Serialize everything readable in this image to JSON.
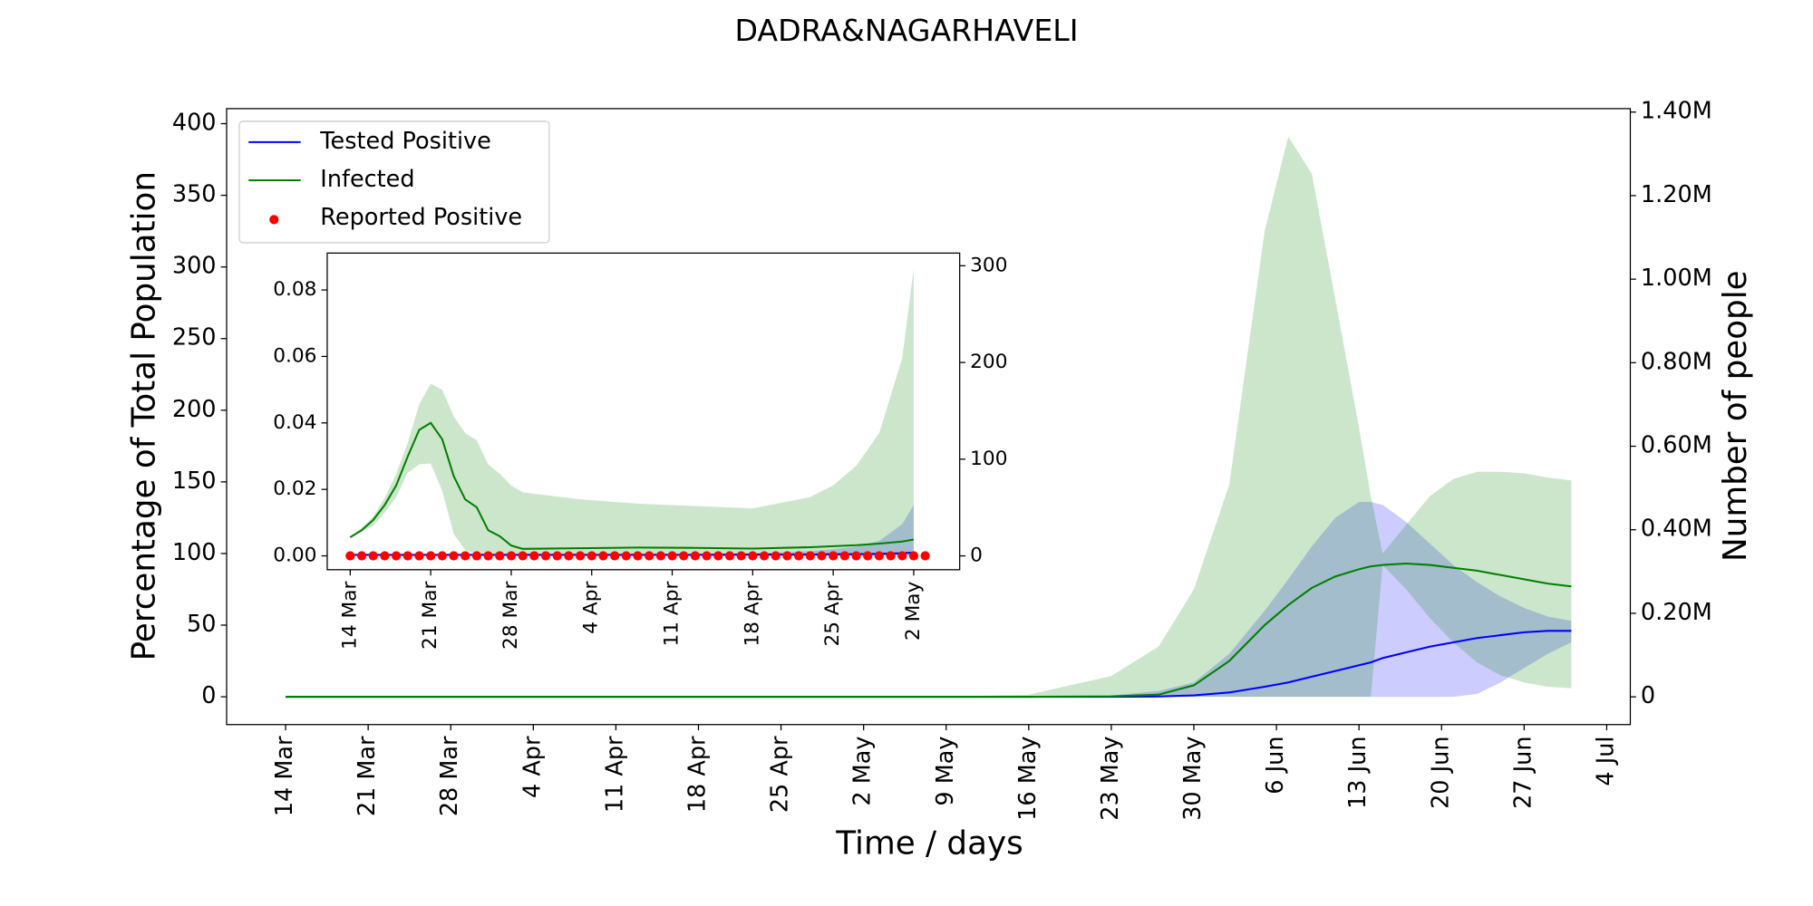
{
  "chart_data": [
    {
      "type": "line",
      "title": "DADRA&NAGARHAVELI",
      "xlabel": "Time / days",
      "ylabel": "Percentage of Total Population",
      "y2label": "Number of people",
      "legend_loc": "upper left",
      "band_alpha": 0.2,
      "x": [
        "14 Mar",
        "21 Mar",
        "28 Mar",
        "4 Apr",
        "11 Apr",
        "18 Apr",
        "25 Apr",
        "2 May",
        "9 May",
        "16 May",
        "23 May",
        "27 May",
        "30 May",
        "2 Jun",
        "5 Jun",
        "7 Jun",
        "9 Jun",
        "11 Jun",
        "13 Jun",
        "14 Jun",
        "15 Jun",
        "17 Jun",
        "19 Jun",
        "21 Jun",
        "23 Jun",
        "25 Jun",
        "27 Jun",
        "29 Jun",
        "1 Jul"
      ],
      "xlim": [
        "9 Mar",
        "6 Jul"
      ],
      "xticks": [
        "14 Mar",
        "21 Mar",
        "28 Mar",
        "4 Apr",
        "11 Apr",
        "18 Apr",
        "25 Apr",
        "2 May",
        "9 May",
        "16 May",
        "23 May",
        "30 May",
        "6 Jun",
        "13 Jun",
        "20 Jun",
        "27 Jun",
        "4 Jul"
      ],
      "ylim": [
        -19.4,
        410.5
      ],
      "yticks": [
        0,
        50,
        100,
        150,
        200,
        250,
        300,
        350,
        400
      ],
      "y2lim": [
        -66400,
        1408300
      ],
      "y2ticks": [
        {
          "value": 0,
          "label": "0"
        },
        {
          "value": 200000,
          "label": "0.20M"
        },
        {
          "value": 400000,
          "label": "0.40M"
        },
        {
          "value": 600000,
          "label": "0.60M"
        },
        {
          "value": 800000,
          "label": "0.80M"
        },
        {
          "value": 1000000,
          "label": "1.00M"
        },
        {
          "value": 1200000,
          "label": "1.20M"
        },
        {
          "value": 1400000,
          "label": "1.40M"
        }
      ],
      "series": [
        {
          "name": "Tested Positive",
          "color": "blue",
          "values": [
            0,
            0,
            0,
            0,
            0,
            0,
            0,
            0,
            0,
            0,
            0,
            0.2,
            1,
            3,
            7,
            10,
            14,
            18,
            22,
            24,
            27,
            31,
            35,
            38,
            41,
            43,
            45,
            46,
            46
          ],
          "upper": [
            0,
            0,
            0,
            0,
            0,
            0,
            0,
            0,
            0,
            0,
            1,
            4,
            10,
            30,
            60,
            82,
            105,
            125,
            136,
            136,
            134,
            122,
            107,
            92,
            80,
            70,
            62,
            56,
            53
          ],
          "lower": [
            0,
            0,
            0,
            0,
            0,
            0,
            0,
            0,
            0,
            0,
            0,
            0,
            0,
            0,
            0,
            0,
            0,
            0,
            0,
            0,
            0,
            0,
            0,
            0,
            2,
            10,
            20,
            30,
            38
          ]
        },
        {
          "name": "Infected",
          "color": "green",
          "values": [
            0,
            0,
            0,
            0,
            0,
            0,
            0,
            0,
            0,
            0,
            0.3,
            1.5,
            8,
            25,
            50,
            64,
            76,
            84,
            89,
            91,
            92,
            93,
            92,
            90,
            88,
            85,
            82,
            79,
            77
          ],
          "upper": [
            0,
            0,
            0,
            0,
            0,
            0,
            0,
            0,
            0.2,
            1.5,
            14.5,
            35,
            75,
            148,
            325,
            391,
            365,
            277,
            188,
            140,
            100,
            120,
            140,
            152,
            157,
            157,
            156,
            153,
            151
          ],
          "lower": [
            0,
            0,
            0,
            0,
            0,
            0,
            0,
            0,
            0,
            0,
            0,
            0,
            0,
            0,
            0,
            0,
            0,
            0,
            0,
            0,
            92,
            75,
            55,
            38,
            24,
            15,
            10,
            7,
            6
          ]
        },
        {
          "name": "Reported Positive",
          "color": "red",
          "marker": "dot"
        }
      ]
    },
    {
      "type": "line",
      "x": [
        "14 Mar",
        "15 Mar",
        "16 Mar",
        "17 Mar",
        "18 Mar",
        "19 Mar",
        "20 Mar",
        "21 Mar",
        "22 Mar",
        "23 Mar",
        "24 Mar",
        "25 Mar",
        "26 Mar",
        "27 Mar",
        "28 Mar",
        "29 Mar",
        "3 Apr",
        "8 Apr",
        "13 Apr",
        "18 Apr",
        "23 Apr",
        "25 Apr",
        "27 Apr",
        "29 Apr",
        "1 May",
        "2 May"
      ],
      "xlim": [
        "12 Mar",
        "6 May"
      ],
      "xticks": [
        "14 Mar",
        "21 Mar",
        "28 Mar",
        "4 Apr",
        "11 Apr",
        "18 Apr",
        "25 Apr",
        "2 May"
      ],
      "ylim": [
        -0.00417,
        0.0911
      ],
      "yticks": [
        {
          "value": 0,
          "label": "0.00"
        },
        {
          "value": 0.02,
          "label": "0.02"
        },
        {
          "value": 0.04,
          "label": "0.04"
        },
        {
          "value": 0.06,
          "label": "0.06"
        },
        {
          "value": 0.08,
          "label": "0.08"
        }
      ],
      "y2lim": [
        -14.3,
        313.1
      ],
      "y2ticks": [
        0,
        100,
        200,
        300
      ],
      "band_alpha": 0.2,
      "series": [
        {
          "color": "blue",
          "values": [
            0.0003,
            0.0003,
            0.0003,
            0.0003,
            0.0003,
            0.0003,
            0.0003,
            0.0003,
            0.0003,
            0.0003,
            0.0003,
            0.0003,
            0.0003,
            0.0003,
            0.0003,
            0.0003,
            0.0003,
            0.0003,
            0.0003,
            0.0004,
            0.0004,
            0.0005,
            0.0005,
            0.0006,
            0.0008,
            0.001
          ],
          "upper": [
            0.0004,
            0.0004,
            0.0004,
            0.0004,
            0.0004,
            0.0004,
            0.0004,
            0.0004,
            0.0004,
            0.0004,
            0.0004,
            0.0004,
            0.0004,
            0.0004,
            0.0004,
            0.0004,
            0.0004,
            0.0005,
            0.0006,
            0.0008,
            0.0014,
            0.002,
            0.0028,
            0.0045,
            0.0095,
            0.0153
          ],
          "lower": [
            0,
            0,
            0,
            0,
            0,
            0,
            0,
            0,
            0,
            0,
            0,
            0,
            0,
            0,
            0,
            0,
            0,
            0,
            0,
            0,
            0,
            0,
            0,
            0,
            0,
            0
          ]
        },
        {
          "color": "green",
          "values": [
            0.0056,
            0.0077,
            0.0108,
            0.0153,
            0.0212,
            0.0299,
            0.0379,
            0.04,
            0.0351,
            0.024,
            0.017,
            0.0146,
            0.0077,
            0.0059,
            0.0031,
            0.0021,
            0.0023,
            0.0025,
            0.0024,
            0.0022,
            0.0026,
            0.0029,
            0.0032,
            0.0037,
            0.0043,
            0.0049
          ],
          "upper": [
            0.0056,
            0.0085,
            0.0118,
            0.0175,
            0.0247,
            0.034,
            0.0456,
            0.0518,
            0.05,
            0.042,
            0.0369,
            0.0348,
            0.0275,
            0.0247,
            0.0212,
            0.0191,
            0.017,
            0.0157,
            0.015,
            0.0143,
            0.0177,
            0.0212,
            0.0271,
            0.0369,
            0.0595,
            0.0863
          ],
          "lower": [
            0.0056,
            0.0075,
            0.009,
            0.013,
            0.0177,
            0.025,
            0.0275,
            0.0278,
            0.0195,
            0.0066,
            0.0017,
            0.0005,
            0,
            0,
            0,
            0,
            0,
            0,
            0,
            0,
            0,
            0,
            0,
            0,
            0,
            0
          ]
        },
        {
          "color": "red",
          "marker": "dot",
          "x": [
            "14 Mar",
            "15 Mar",
            "16 Mar",
            "17 Mar",
            "18 Mar",
            "19 Mar",
            "20 Mar",
            "21 Mar",
            "22 Mar",
            "23 Mar",
            "24 Mar",
            "25 Mar",
            "26 Mar",
            "27 Mar",
            "28 Mar",
            "29 Mar",
            "30 Mar",
            "31 Mar",
            "1 Apr",
            "2 Apr",
            "3 Apr",
            "4 Apr",
            "5 Apr",
            "6 Apr",
            "7 Apr",
            "8 Apr",
            "9 Apr",
            "10 Apr",
            "11 Apr",
            "12 Apr",
            "13 Apr",
            "14 Apr",
            "15 Apr",
            "16 Apr",
            "17 Apr",
            "18 Apr",
            "19 Apr",
            "20 Apr",
            "21 Apr",
            "22 Apr",
            "23 Apr",
            "24 Apr",
            "25 Apr",
            "26 Apr",
            "27 Apr",
            "28 Apr",
            "29 Apr",
            "30 Apr",
            "1 May",
            "2 May",
            "3 May"
          ],
          "values": [
            0,
            0,
            0,
            0,
            0,
            0,
            0,
            0,
            0,
            0,
            0,
            0,
            0,
            0,
            0,
            0,
            0,
            0,
            0,
            0,
            0,
            0,
            0,
            0,
            0,
            0,
            0,
            0,
            0,
            0,
            0,
            0,
            0,
            0,
            0,
            0,
            0,
            0,
            0,
            0,
            0,
            0,
            0,
            0,
            0,
            0,
            0,
            0,
            0,
            0,
            0
          ]
        }
      ]
    }
  ]
}
